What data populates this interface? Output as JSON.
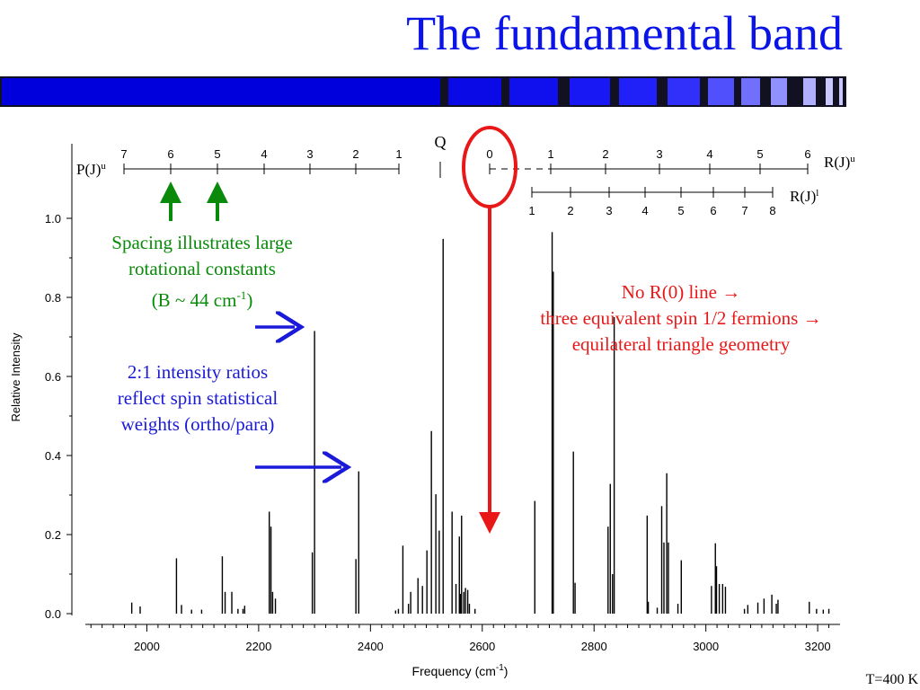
{
  "title": "The fundamental band",
  "temperature": "T=400 K",
  "colors": {
    "title": "#0a14e6",
    "green": "#0a8a0a",
    "blue": "#1a1ad8",
    "red": "#e81818"
  },
  "title_bar_blocks": [
    "#0000dd",
    "#0a0ae6",
    "#1010ee",
    "#1818f4",
    "#2020f8",
    "#3030fa",
    "#5050fc",
    "#7070fd",
    "#9090fe",
    "#b0b0ff",
    "#c8c8ff"
  ],
  "annotations": {
    "spacing": [
      "Spacing illustrates large",
      "rotational constants",
      "(B ~ 44 cm-1)"
    ],
    "ratio": [
      "2:1 intensity ratios",
      "reflect spin statistical",
      "weights (ortho/para)"
    ],
    "r0": [
      "No R(0) line →",
      "three equivalent spin 1/2 fermions →",
      "equilateral triangle geometry"
    ]
  },
  "chart_data": {
    "type": "bar",
    "xlabel": "Frequency (cm-1)",
    "ylabel": "Relative Intensity",
    "xlim": [
      1890,
      3240
    ],
    "ylim": [
      0,
      1.08
    ],
    "xticks": [
      2000,
      2200,
      2400,
      2600,
      2800,
      3000,
      3200
    ],
    "yticks": [
      "0.0",
      "0.2",
      "0.4",
      "0.6",
      "0.8",
      "1.0"
    ],
    "lines": [
      [
        1973,
        0.028
      ],
      [
        1988,
        0.018
      ],
      [
        2053,
        0.14
      ],
      [
        2062,
        0.022
      ],
      [
        2080,
        0.01
      ],
      [
        2098,
        0.01
      ],
      [
        2135,
        0.145
      ],
      [
        2140,
        0.055
      ],
      [
        2152,
        0.055
      ],
      [
        2163,
        0.012
      ],
      [
        2172,
        0.012
      ],
      [
        2175,
        0.02
      ],
      [
        2219,
        0.258
      ],
      [
        2222,
        0.22
      ],
      [
        2225,
        0.055
      ],
      [
        2230,
        0.038
      ],
      [
        2296,
        0.155
      ],
      [
        2300,
        0.715
      ],
      [
        2374,
        0.138
      ],
      [
        2379,
        0.36
      ],
      [
        2445,
        0.008
      ],
      [
        2450,
        0.012
      ],
      [
        2458,
        0.172
      ],
      [
        2468,
        0.025
      ],
      [
        2472,
        0.055
      ],
      [
        2485,
        0.09
      ],
      [
        2493,
        0.07
      ],
      [
        2501,
        0.16
      ],
      [
        2509,
        0.462
      ],
      [
        2517,
        0.302
      ],
      [
        2523,
        0.21
      ],
      [
        2530,
        0.948
      ],
      [
        2546,
        0.258
      ],
      [
        2553,
        0.075
      ],
      [
        2559,
        0.195
      ],
      [
        2561,
        0.05
      ],
      [
        2563,
        0.248
      ],
      [
        2567,
        0.055
      ],
      [
        2570,
        0.065
      ],
      [
        2574,
        0.06
      ],
      [
        2577,
        0.025
      ],
      [
        2587,
        0.012
      ],
      [
        2694,
        0.285
      ],
      [
        2725,
        0.965
      ],
      [
        2727,
        0.865
      ],
      [
        2763,
        0.41
      ],
      [
        2766,
        0.078
      ],
      [
        2825,
        0.22
      ],
      [
        2829,
        0.328
      ],
      [
        2833,
        0.1
      ],
      [
        2836,
        0.75
      ],
      [
        2895,
        0.248
      ],
      [
        2897,
        0.03
      ],
      [
        2913,
        0.015
      ],
      [
        2921,
        0.272
      ],
      [
        2925,
        0.18
      ],
      [
        2930,
        0.355
      ],
      [
        2933,
        0.18
      ],
      [
        2950,
        0.025
      ],
      [
        2956,
        0.135
      ],
      [
        3010,
        0.07
      ],
      [
        3017,
        0.178
      ],
      [
        3019,
        0.12
      ],
      [
        3024,
        0.075
      ],
      [
        3030,
        0.075
      ],
      [
        3035,
        0.068
      ],
      [
        3069,
        0.012
      ],
      [
        3075,
        0.022
      ],
      [
        3093,
        0.028
      ],
      [
        3104,
        0.038
      ],
      [
        3118,
        0.048
      ],
      [
        3126,
        0.025
      ],
      [
        3129,
        0.035
      ],
      [
        3185,
        0.03
      ],
      [
        3198,
        0.012
      ],
      [
        3210,
        0.01
      ],
      [
        3220,
        0.012
      ]
    ],
    "branches": {
      "P_upper": {
        "label": "P(J)",
        "sup": "u",
        "ticks": [
          "7",
          "6",
          "5",
          "4",
          "3",
          "2",
          "1"
        ]
      },
      "Q": {
        "label": "Q"
      },
      "R_upper": {
        "label": "R(J)",
        "sup": "u",
        "ticks": [
          "0",
          "1",
          "2",
          "3",
          "4",
          "5",
          "6"
        ]
      },
      "R_lower": {
        "label": "R(J)",
        "sup": "l",
        "ticks": [
          "1",
          "2",
          "3",
          "4",
          "5",
          "6",
          "7",
          "8"
        ]
      }
    }
  }
}
